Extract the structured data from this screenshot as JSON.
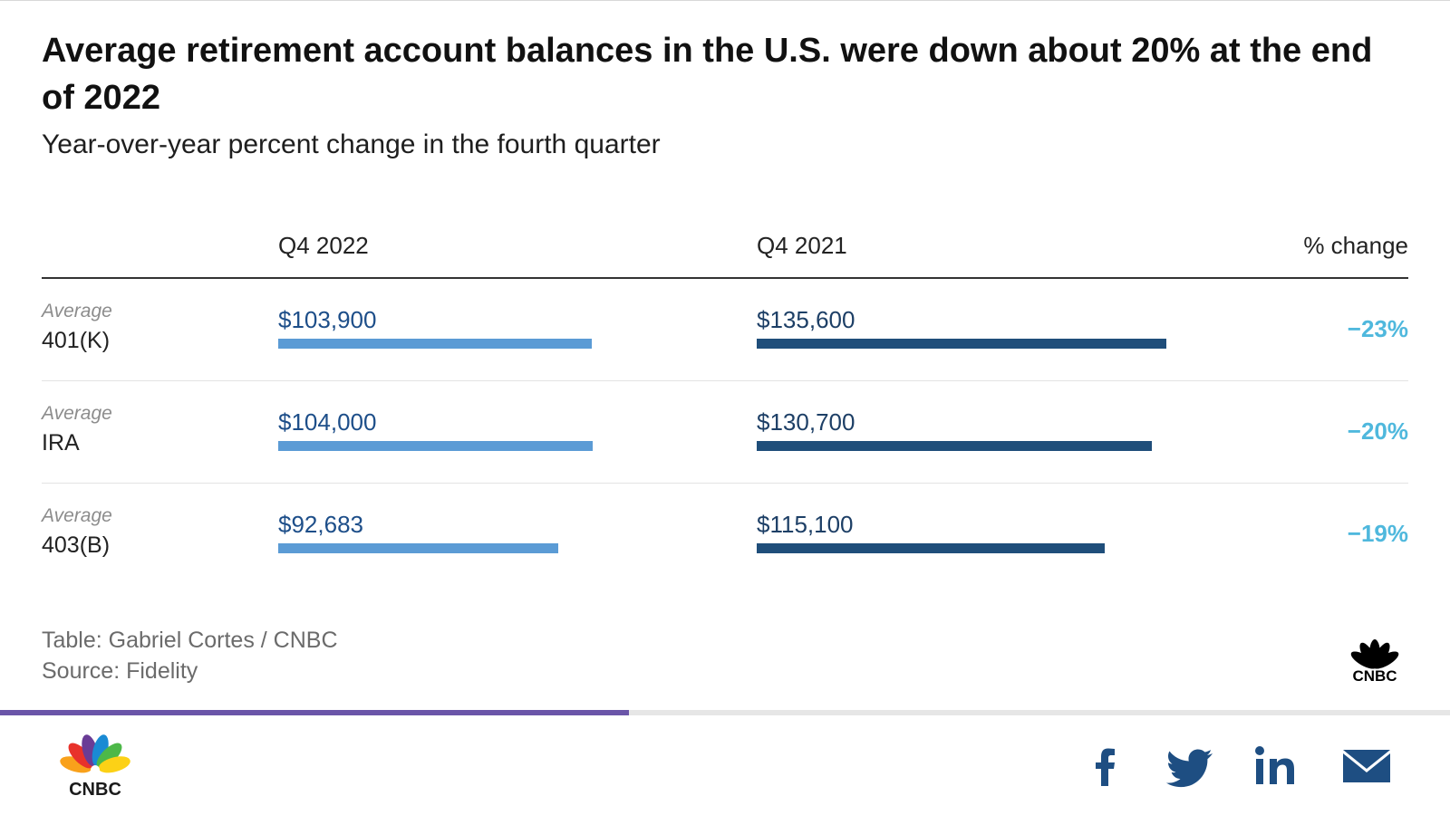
{
  "chart": {
    "title": "Average retirement account balances in the U.S. were down about 20% at the end of 2022",
    "subtitle": "Year-over-year percent change in the fourth quarter",
    "columns": [
      "Q4 2022",
      "Q4 2021",
      "% change"
    ]
  },
  "chart_data": {
    "type": "bar",
    "title": "Average retirement account balances in the U.S. were down about 20% at the end of 2022",
    "subtitle": "Year-over-year percent change in the fourth quarter",
    "categories": [
      "401(K)",
      "IRA",
      "403(B)"
    ],
    "row_prefix": "Average",
    "series": [
      {
        "name": "Q4 2022",
        "values": [
          103900,
          104000,
          92683
        ],
        "labels": [
          "$103,900",
          "$104,000",
          "$92,683"
        ],
        "color": "#5b9bd5"
      },
      {
        "name": "Q4 2021",
        "values": [
          135600,
          130700,
          115100
        ],
        "labels": [
          "$135,600",
          "$130,700",
          "$115,100"
        ],
        "color": "#1f4e7a"
      }
    ],
    "percent_change": [
      "−23%",
      "−20%",
      "−19%"
    ],
    "percent_change_color": "#4fb8dd",
    "xlim": [
      0,
      135600
    ],
    "grid": false
  },
  "footer": {
    "credit": "Table: Gabriel Cortes / CNBC",
    "source": "Source: Fidelity"
  },
  "brand": {
    "logo_text": "CNBC",
    "peacock_colors": [
      "#f9a11b",
      "#e8322b",
      "#6a3c96",
      "#1a8ad4",
      "#4db848",
      "#fcd116"
    ]
  },
  "progress": {
    "fraction": 0.434,
    "color": "#6a55a8"
  },
  "share_icons": [
    "facebook-icon",
    "twitter-icon",
    "linkedin-icon",
    "email-icon"
  ],
  "share_color": "#1e4e82"
}
